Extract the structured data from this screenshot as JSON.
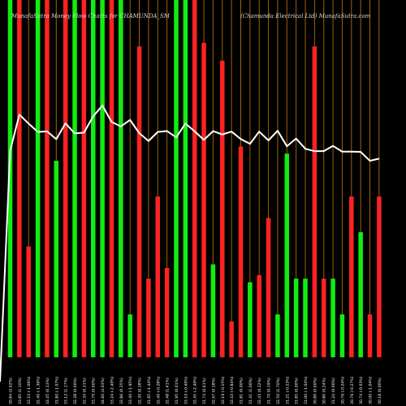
{
  "header": {
    "left_title": "MunafaSutra  Money Flow  Charts for CHAMUNDA_SM",
    "right_title": "(Chamunda  Electrical Ltd)  MunafaSutra.com"
  },
  "colors": {
    "background": "#000000",
    "up_bar": "#11ee11",
    "down_bar": "#ff2222",
    "price_line": "#ffffff",
    "grid_line": "#a0620a"
  },
  "chart_data": {
    "type": "bar",
    "title": "MunafaSutra  Money Flow  Charts for CHAMUNDA_SM",
    "subtitle": "(Chamunda  Electrical Ltd)  MunafaSutra.com",
    "grid": true,
    "categories": [
      "30 Jul 2025",
      "31 Jul 2025",
      "01 Aug 2025",
      "04 Aug 2025",
      "05 Aug 2025",
      "06 Aug 2025",
      "07 Aug 2025",
      "08 Aug 2025",
      "11 Aug 2025",
      "12 Aug 2025",
      "13 Aug 2025",
      "14 Aug 2025",
      "18 Aug 2025",
      "19 Aug 2025",
      "20 Aug 2025",
      "21 Aug 2025",
      "22 Aug 2025",
      "25 Aug 2025",
      "26 Aug 2025",
      "28 Aug 2025",
      "29 Aug 2025",
      "01 Sep 2025",
      "02 Sep 2025",
      "03 Sep 2025",
      "04 Sep 2025",
      "05 Sep 2025",
      "08 Sep 2025",
      "09 Sep 2025",
      "10 Sep 2025",
      "11 Sep 2025",
      "12 Sep 2025",
      "15 Sep 2025",
      "16 Sep 2025",
      "17 Sep 2025",
      "18 Sep 2025",
      "19 Sep 2025",
      "22 Sep 2025",
      "23 Sep 2025",
      "24 Sep 2025",
      "25 Sep 2025",
      "26 Sep 2025"
    ],
    "tick_labels": [
      "30.84 (2.02%)",
      "33.85 (1.10%)",
      "33.10 (-1.06%)",
      "32.40 (-1.36%)",
      "32.45 (0.13%)",
      "31.80 (-1.07%)",
      "33.12 (1.17%)",
      "32.28 (0.00%)",
      "32.34 (0.31%)",
      "33.70 (0.00%)",
      "34.60 (4.03%)",
      "33.24 (-2.40%)",
      "32.86 (0.35%)",
      "33.40 (-1.95%)",
      "32.30 (0.18%)",
      "31.65 (-1.44%)",
      "32.40 (-0.28%)",
      "32.48 (1.41%)",
      "31.95 (0.01%)",
      "33.10 (-0.40%)",
      "32.45 (-2.40%)",
      "31.74 (0.61%)",
      "32.47 (0.18%)",
      "32.19 (-0.15%)",
      "32.43 (-0.84%)",
      "31.81 (0.00%)",
      "31.41 (1.00%)",
      "32.43 (0.32%)",
      "31.70 (0.19%)",
      "32.50 (1.70%)",
      "31.21 (-0.23%)",
      "31.85 (0.00%)",
      "31.00 (-1.04%)",
      "30.80 (0.00%)",
      "30.80 (0.24%)",
      "31.24 (0.00%)",
      "30.76 (-0.24%)",
      "30.76 (-0.27%)",
      "30.74 (-0.03%)",
      "30.00 (-1.04%)",
      "30.18 (0.00%)"
    ],
    "series": [
      {
        "directions": [
          "up",
          "down",
          "down",
          "up",
          "down",
          "up",
          "down",
          "up",
          "down",
          "up",
          "up",
          "down",
          "up",
          "up",
          "down",
          "down",
          "down",
          "down",
          "up",
          "up",
          "down",
          "down",
          "up",
          "down",
          "down",
          "down",
          "up",
          "down",
          "down",
          "up",
          "up",
          "up",
          "up",
          "down",
          "down",
          "up",
          "up",
          "down",
          "up",
          "down",
          "down"
        ],
        "values": [
          100,
          100,
          31,
          100,
          100,
          55,
          100,
          100,
          100,
          100,
          100,
          100,
          100,
          12,
          87,
          22,
          45,
          25,
          100,
          100,
          100,
          88,
          26,
          83,
          10,
          59,
          21,
          23,
          39,
          12,
          57,
          22,
          22,
          87,
          22,
          22,
          12,
          45,
          35,
          12,
          45
        ]
      },
      {
        "name": "price",
        "values": [
          30.84,
          33.85,
          33.1,
          32.4,
          32.45,
          31.8,
          33.12,
          32.28,
          32.34,
          33.7,
          34.6,
          33.24,
          32.86,
          33.4,
          32.3,
          31.65,
          32.4,
          32.48,
          31.95,
          33.1,
          32.45,
          31.74,
          32.47,
          32.19,
          32.43,
          31.81,
          31.41,
          32.43,
          31.7,
          32.5,
          31.21,
          31.85,
          31.0,
          30.8,
          30.8,
          31.24,
          30.76,
          30.76,
          30.74,
          30.0,
          30.18
        ]
      }
    ],
    "ylim": [
      0,
      100
    ]
  }
}
